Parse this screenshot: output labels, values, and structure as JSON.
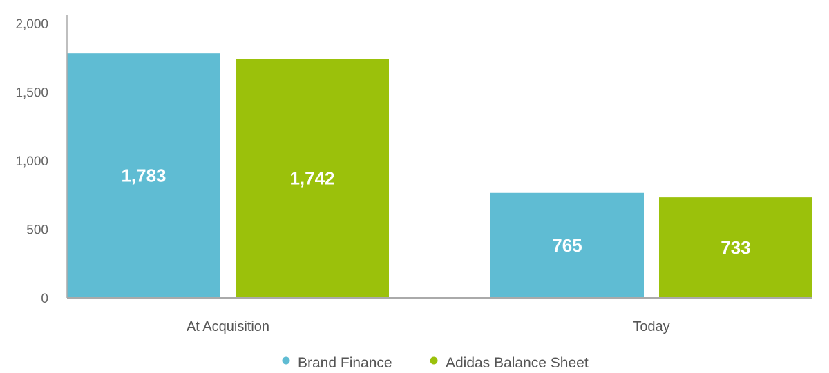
{
  "chart_data": {
    "type": "bar",
    "categories": [
      "At Acquisition",
      "Today"
    ],
    "series": [
      {
        "name": "Brand Finance",
        "values": [
          1783,
          765
        ],
        "labels": [
          "1,783",
          "765"
        ],
        "color": "#5fbcd3"
      },
      {
        "name": "Adidas Balance Sheet",
        "values": [
          1742,
          733
        ],
        "labels": [
          "1,742",
          "733"
        ],
        "color": "#9bc10b"
      }
    ],
    "ylim": [
      0,
      2000
    ],
    "yticks": [
      0,
      500,
      1000,
      1500,
      2000
    ],
    "ytick_labels": [
      "0",
      "500",
      "1,000",
      "1,500",
      "2,000"
    ],
    "grid": false,
    "legend_position": "bottom-center",
    "axis_color": "#aaaaaa",
    "text_color": "#666666"
  }
}
